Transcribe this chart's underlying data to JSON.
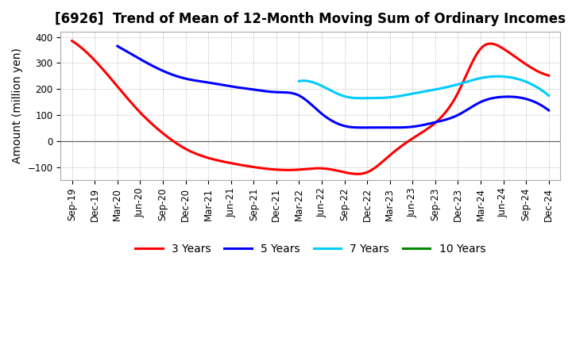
{
  "title": "[6926]  Trend of Mean of 12-Month Moving Sum of Ordinary Incomes",
  "ylabel": "Amount (million yen)",
  "xlabel": "",
  "ylim": [
    -150,
    420
  ],
  "yticks": [
    -100,
    0,
    100,
    200,
    300,
    400
  ],
  "background_color": "#ffffff",
  "plot_bg_color": "#ffffff",
  "grid_color": "#aaaaaa",
  "x_labels": [
    "Sep-19",
    "Dec-19",
    "Mar-20",
    "Jun-20",
    "Sep-20",
    "Dec-20",
    "Mar-21",
    "Jun-21",
    "Sep-21",
    "Dec-21",
    "Mar-22",
    "Jun-22",
    "Sep-22",
    "Dec-22",
    "Mar-23",
    "Jun-23",
    "Sep-23",
    "Dec-23",
    "Mar-24",
    "Jun-24",
    "Sep-24",
    "Dec-24"
  ],
  "series": [
    {
      "label": "3 Years",
      "color": "#ff0000",
      "linewidth": 2.2,
      "data": [
        385,
        310,
        210,
        110,
        30,
        -30,
        -65,
        -85,
        -100,
        -110,
        -110,
        -105,
        -120,
        -120,
        -55,
        10,
        70,
        185,
        355,
        355,
        295,
        252
      ]
    },
    {
      "label": "5 Years",
      "color": "#0000ff",
      "linewidth": 2.2,
      "data": [
        null,
        null,
        365,
        315,
        270,
        240,
        225,
        210,
        198,
        188,
        175,
        105,
        58,
        52,
        52,
        55,
        72,
        100,
        150,
        170,
        162,
        118
      ]
    },
    {
      "label": "7 Years",
      "color": "#00ccff",
      "linewidth": 2.2,
      "data": [
        null,
        null,
        null,
        null,
        null,
        null,
        null,
        null,
        null,
        null,
        230,
        212,
        172,
        165,
        168,
        182,
        198,
        218,
        242,
        248,
        228,
        175
      ]
    },
    {
      "label": "10 Years",
      "color": "#008800",
      "linewidth": 2.2,
      "data": [
        null,
        null,
        null,
        null,
        null,
        null,
        null,
        null,
        null,
        null,
        null,
        null,
        null,
        null,
        null,
        null,
        null,
        null,
        null,
        null,
        null,
        null
      ]
    }
  ],
  "legend_loc": "lower center",
  "title_fontsize": 12,
  "axis_label_fontsize": 10,
  "tick_fontsize": 8.5
}
